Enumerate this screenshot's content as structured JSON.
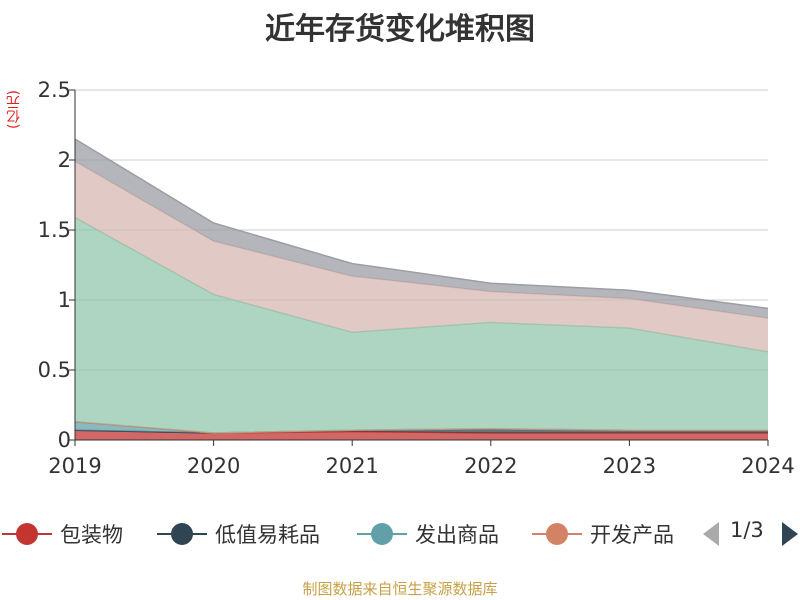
{
  "title": "近年存货变化堆积图",
  "unit": "(亿元)",
  "source": "制图数据来自恒生聚源数据库",
  "legend_pager": "1/3",
  "chart_data": {
    "type": "area",
    "stacked": true,
    "title": "近年存货变化堆积图",
    "ylabel": "(亿元)",
    "x": [
      "2019",
      "2020",
      "2021",
      "2022",
      "2023",
      "2024"
    ],
    "ylim": [
      0,
      2.5
    ],
    "yticks": [
      "0",
      "0.5",
      "1",
      "1.5",
      "2",
      "2.5"
    ],
    "grid": true,
    "legend_position": "bottom",
    "series": [
      {
        "name": "包装物",
        "color": "#c23531",
        "values": [
          0.07,
          0.05,
          0.06,
          0.05,
          0.05,
          0.05
        ]
      },
      {
        "name": "低值易耗品",
        "color": "#2f4554",
        "values": [
          0.0,
          0.0,
          0.01,
          0.03,
          0.02,
          0.02
        ]
      },
      {
        "name": "发出商品",
        "color": "#61a0a8",
        "values": [
          0.06,
          0.0,
          0.0,
          0.0,
          0.0,
          0.0
        ]
      },
      {
        "name": "开发产品",
        "color": "#d48265",
        "values": [
          0.0,
          0.0,
          0.0,
          0.0,
          0.0,
          0.0
        ]
      },
      {
        "name": "",
        "color": "#91c7ae",
        "values": [
          1.46,
          0.99,
          0.7,
          0.76,
          0.73,
          0.56
        ]
      },
      {
        "name": "",
        "color": "#d7b8b2",
        "values": [
          0.4,
          0.38,
          0.4,
          0.22,
          0.21,
          0.24
        ]
      },
      {
        "name": "",
        "color": "#9b9ea4",
        "values": [
          0.16,
          0.13,
          0.09,
          0.06,
          0.06,
          0.07
        ]
      }
    ]
  },
  "legend": [
    {
      "label": "包装物",
      "color": "#c23531"
    },
    {
      "label": "低值易耗品",
      "color": "#2f4554"
    },
    {
      "label": "发出商品",
      "color": "#61a0a8"
    },
    {
      "label": "开发产品",
      "color": "#d48265"
    }
  ]
}
